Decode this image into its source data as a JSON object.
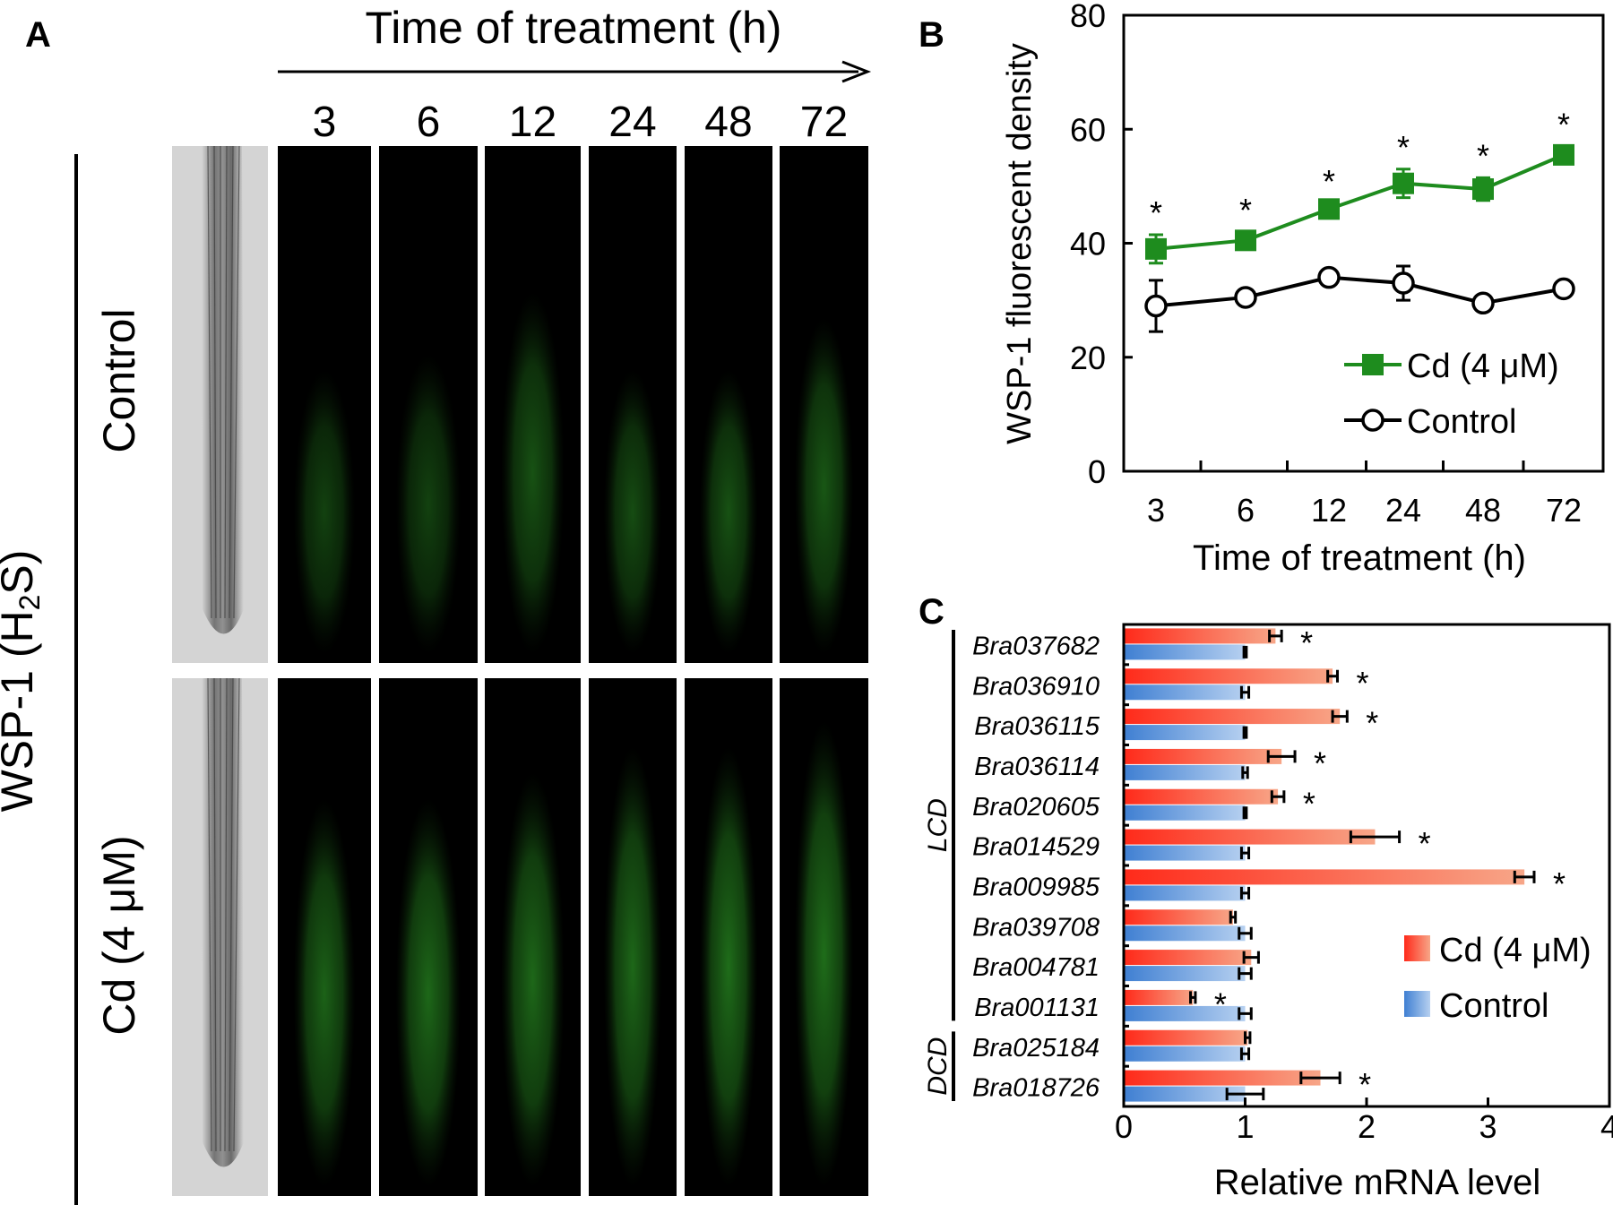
{
  "panel_a": {
    "letter": "A",
    "time_title": "Time of treatment (h)",
    "time_points": [
      "3",
      "6",
      "12",
      "24",
      "48",
      "72"
    ],
    "probe_label_parts": [
      "WSP-1 (H",
      "2",
      "S)"
    ],
    "rows": [
      "Control",
      "Cd (4 μM)"
    ]
  },
  "panel_b": {
    "letter": "B"
  },
  "panel_c": {
    "letter": "C",
    "groups": [
      "LCD",
      "DCD"
    ]
  },
  "colors": {
    "cd_line": "#1e8c1e",
    "control_line": "#000000",
    "cd_bar_start": "#ff2a1a",
    "cd_bar_end": "#f7a688",
    "ctrl_bar_start": "#3f7fd2",
    "ctrl_bar_end": "#b6d0f0"
  },
  "chart_data": [
    {
      "type": "line",
      "title": "",
      "xlabel": "Time of treatment (h)",
      "ylabel": "WSP-1 fluorescent density",
      "categories": [
        "3",
        "6",
        "12",
        "24",
        "48",
        "72"
      ],
      "ylim": [
        0,
        80
      ],
      "yticks": [
        0,
        20,
        40,
        60,
        80
      ],
      "legend": "bottom-right",
      "series": [
        {
          "name": "Cd (4 μM)",
          "values": [
            39,
            40.5,
            46,
            50.5,
            49.5,
            55.5
          ],
          "errors": [
            2.5,
            1.5,
            1,
            2.5,
            2,
            1.5
          ],
          "significant": [
            true,
            true,
            true,
            true,
            true,
            true
          ],
          "marker": "filled-square"
        },
        {
          "name": "Control",
          "values": [
            29,
            30.5,
            34,
            33,
            29.5,
            32
          ],
          "errors": [
            4.5,
            0.8,
            0.8,
            3,
            0.8,
            0.8
          ],
          "significant": [
            false,
            false,
            false,
            false,
            false,
            false
          ],
          "marker": "open-circle"
        }
      ]
    },
    {
      "type": "bar",
      "orientation": "horizontal",
      "xlabel": "Relative mRNA level",
      "ylabel": "",
      "xlim": [
        0,
        4
      ],
      "xticks": [
        0,
        1,
        2,
        3,
        4
      ],
      "legend": "bottom-right",
      "categories": [
        "Bra037682",
        "Bra036910",
        "Bra036115",
        "Bra036114",
        "Bra020605",
        "Bra014529",
        "Bra009985",
        "Bra039708",
        "Bra004781",
        "Bra001131",
        "Bra025184",
        "Bra018726"
      ],
      "category_groups": [
        {
          "name": "LCD",
          "from": 0,
          "to": 9
        },
        {
          "name": "DCD",
          "from": 10,
          "to": 11
        }
      ],
      "series": [
        {
          "name": "Cd (4 μM)",
          "values": [
            1.25,
            1.72,
            1.78,
            1.3,
            1.27,
            2.07,
            3.3,
            0.9,
            1.05,
            0.57,
            1.02,
            1.62
          ],
          "errors": [
            0.05,
            0.04,
            0.06,
            0.11,
            0.05,
            0.2,
            0.08,
            0.02,
            0.06,
            0.02,
            0.02,
            0.16
          ],
          "significant": [
            true,
            true,
            true,
            true,
            true,
            true,
            true,
            false,
            false,
            true,
            false,
            true
          ]
        },
        {
          "name": "Control",
          "values": [
            1,
            1,
            1,
            1,
            1,
            1,
            1,
            1,
            1,
            1,
            1,
            1
          ],
          "errors": [
            0.01,
            0.03,
            0.01,
            0.02,
            0.01,
            0.03,
            0.03,
            0.05,
            0.05,
            0.05,
            0.03,
            0.15
          ],
          "significant": [
            false,
            false,
            false,
            false,
            false,
            false,
            false,
            false,
            false,
            false,
            false,
            false
          ]
        }
      ]
    }
  ]
}
